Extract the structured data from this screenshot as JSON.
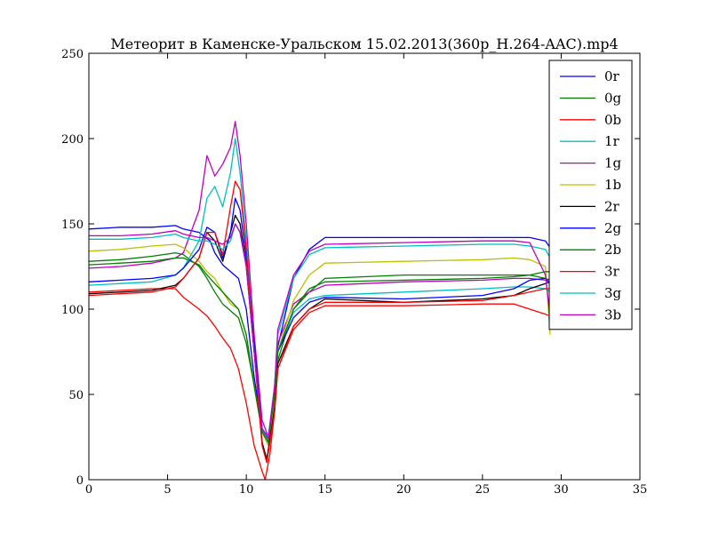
{
  "chart_data": {
    "type": "line",
    "title": "Метеорит в Каменске-Уральском 15.02.2013(360p_H.264-AAC).mp4",
    "xlabel": "",
    "ylabel": "",
    "xlim": [
      0,
      35
    ],
    "ylim": [
      0,
      250
    ],
    "xticks": [
      "0",
      "5",
      "10",
      "15",
      "20",
      "25",
      "30",
      "35"
    ],
    "yticks": [
      "0",
      "50",
      "100",
      "150",
      "200",
      "250"
    ],
    "legend_position": "top-right",
    "grid": false,
    "series": [
      {
        "name": "0r",
        "color": "#0000ff",
        "points": [
          [
            0,
            147
          ],
          [
            2,
            148
          ],
          [
            4,
            148
          ],
          [
            5.5,
            149
          ],
          [
            6,
            147
          ],
          [
            7,
            145
          ],
          [
            7.7,
            140
          ],
          [
            8,
            133
          ],
          [
            8.5,
            126
          ],
          [
            9,
            122
          ],
          [
            9.5,
            118
          ],
          [
            10,
            100
          ],
          [
            10.5,
            60
          ],
          [
            11,
            30
          ],
          [
            11.4,
            22
          ],
          [
            11.8,
            50
          ],
          [
            12,
            78
          ],
          [
            13,
            118
          ],
          [
            14,
            135
          ],
          [
            15,
            142
          ],
          [
            20,
            142
          ],
          [
            25,
            142
          ],
          [
            28,
            142
          ],
          [
            29,
            140
          ],
          [
            29.3,
            136
          ]
        ]
      },
      {
        "name": "0g",
        "color": "#008000",
        "points": [
          [
            0,
            128
          ],
          [
            2,
            129
          ],
          [
            4,
            131
          ],
          [
            5.5,
            133
          ],
          [
            6,
            132
          ],
          [
            7,
            125
          ],
          [
            7.5,
            118
          ],
          [
            8,
            110
          ],
          [
            8.5,
            103
          ],
          [
            9,
            99
          ],
          [
            9.5,
            95
          ],
          [
            10,
            80
          ],
          [
            10.5,
            55
          ],
          [
            11,
            28
          ],
          [
            11.4,
            20
          ],
          [
            11.8,
            45
          ],
          [
            12,
            70
          ],
          [
            13,
            100
          ],
          [
            14,
            110
          ],
          [
            15,
            118
          ],
          [
            20,
            120
          ],
          [
            25,
            120
          ],
          [
            28,
            120
          ],
          [
            29,
            118
          ],
          [
            29.3,
            117
          ]
        ]
      },
      {
        "name": "0b",
        "color": "#ff0000",
        "points": [
          [
            0,
            110
          ],
          [
            2,
            111
          ],
          [
            4,
            112
          ],
          [
            5.5,
            112
          ],
          [
            6,
            107
          ],
          [
            7,
            100
          ],
          [
            7.5,
            96
          ],
          [
            8,
            90
          ],
          [
            8.5,
            83
          ],
          [
            9,
            77
          ],
          [
            9.5,
            65
          ],
          [
            10,
            45
          ],
          [
            10.5,
            20
          ],
          [
            11,
            5
          ],
          [
            11.2,
            0
          ],
          [
            11.5,
            15
          ],
          [
            11.8,
            40
          ],
          [
            12,
            65
          ],
          [
            13,
            88
          ],
          [
            14,
            98
          ],
          [
            15,
            102
          ],
          [
            20,
            102
          ],
          [
            25,
            103
          ],
          [
            27,
            103
          ],
          [
            28,
            100
          ],
          [
            29,
            97
          ],
          [
            29.3,
            96
          ]
        ]
      },
      {
        "name": "1r",
        "color": "#00bfbf",
        "points": [
          [
            0,
            114
          ],
          [
            2,
            115
          ],
          [
            4,
            116
          ],
          [
            5.5,
            120
          ],
          [
            6,
            124
          ],
          [
            7,
            140
          ],
          [
            7.5,
            165
          ],
          [
            8,
            172
          ],
          [
            8.5,
            160
          ],
          [
            9,
            180
          ],
          [
            9.3,
            200
          ],
          [
            9.6,
            180
          ],
          [
            10,
            140
          ],
          [
            10.5,
            80
          ],
          [
            11,
            30
          ],
          [
            11.4,
            22
          ],
          [
            11.8,
            50
          ],
          [
            12,
            75
          ],
          [
            13,
            98
          ],
          [
            14,
            106
          ],
          [
            15,
            108
          ],
          [
            20,
            110
          ],
          [
            25,
            112
          ],
          [
            27,
            113
          ],
          [
            28,
            113
          ],
          [
            29,
            112
          ],
          [
            29.3,
            110
          ]
        ]
      },
      {
        "name": "1g",
        "color": "#bf00bf",
        "points": [
          [
            0,
            124
          ],
          [
            2,
            125
          ],
          [
            4,
            127
          ],
          [
            5.5,
            130
          ],
          [
            6,
            133
          ],
          [
            7,
            158
          ],
          [
            7.5,
            190
          ],
          [
            8,
            178
          ],
          [
            8.5,
            185
          ],
          [
            9,
            195
          ],
          [
            9.3,
            210
          ],
          [
            9.6,
            190
          ],
          [
            10,
            150
          ],
          [
            10.5,
            85
          ],
          [
            11,
            35
          ],
          [
            11.4,
            25
          ],
          [
            11.8,
            55
          ],
          [
            12,
            80
          ],
          [
            13,
            103
          ],
          [
            14,
            110
          ],
          [
            15,
            114
          ],
          [
            20,
            116
          ],
          [
            25,
            117
          ],
          [
            27,
            118
          ],
          [
            28,
            118
          ],
          [
            29,
            117
          ],
          [
            29.3,
            116
          ]
        ]
      },
      {
        "name": "1b",
        "color": "#bfbf00",
        "points": [
          [
            0,
            134
          ],
          [
            2,
            135
          ],
          [
            4,
            137
          ],
          [
            5.5,
            138
          ],
          [
            6,
            136
          ],
          [
            7,
            128
          ],
          [
            7.5,
            122
          ],
          [
            8,
            118
          ],
          [
            8.5,
            110
          ],
          [
            9,
            103
          ],
          [
            9.5,
            100
          ],
          [
            10,
            85
          ],
          [
            10.5,
            55
          ],
          [
            11,
            28
          ],
          [
            11.4,
            20
          ],
          [
            11.8,
            48
          ],
          [
            12,
            75
          ],
          [
            13,
            105
          ],
          [
            14,
            120
          ],
          [
            15,
            127
          ],
          [
            20,
            128
          ],
          [
            25,
            129
          ],
          [
            27,
            130
          ],
          [
            28,
            129
          ],
          [
            29,
            125
          ],
          [
            29.3,
            85
          ]
        ]
      },
      {
        "name": "2r",
        "color": "#000000",
        "points": [
          [
            0,
            109
          ],
          [
            2,
            110
          ],
          [
            4,
            111
          ],
          [
            5.5,
            114
          ],
          [
            6,
            118
          ],
          [
            7,
            130
          ],
          [
            7.5,
            145
          ],
          [
            8,
            140
          ],
          [
            8.5,
            128
          ],
          [
            9,
            145
          ],
          [
            9.3,
            155
          ],
          [
            9.6,
            150
          ],
          [
            10,
            125
          ],
          [
            10.5,
            75
          ],
          [
            11,
            22
          ],
          [
            11.3,
            12
          ],
          [
            11.8,
            42
          ],
          [
            12,
            68
          ],
          [
            13,
            90
          ],
          [
            14,
            100
          ],
          [
            15,
            106
          ],
          [
            20,
            104
          ],
          [
            25,
            106
          ],
          [
            27,
            108
          ],
          [
            28,
            112
          ],
          [
            29,
            115
          ],
          [
            29.3,
            116
          ]
        ]
      },
      {
        "name": "2g",
        "color": "#0000ff",
        "points": [
          [
            0,
            116
          ],
          [
            2,
            117
          ],
          [
            4,
            118
          ],
          [
            5.5,
            120
          ],
          [
            6,
            124
          ],
          [
            7,
            135
          ],
          [
            7.5,
            148
          ],
          [
            8,
            145
          ],
          [
            8.5,
            130
          ],
          [
            9,
            145
          ],
          [
            9.3,
            165
          ],
          [
            9.6,
            158
          ],
          [
            10,
            130
          ],
          [
            10.5,
            80
          ],
          [
            11,
            30
          ],
          [
            11.4,
            25
          ],
          [
            11.8,
            52
          ],
          [
            12,
            75
          ],
          [
            13,
            95
          ],
          [
            14,
            104
          ],
          [
            15,
            107
          ],
          [
            20,
            106
          ],
          [
            25,
            108
          ],
          [
            27,
            112
          ],
          [
            28,
            117
          ],
          [
            29,
            118
          ],
          [
            29.3,
            115
          ]
        ]
      },
      {
        "name": "2b",
        "color": "#008000",
        "points": [
          [
            0,
            126
          ],
          [
            2,
            127
          ],
          [
            4,
            128
          ],
          [
            5.5,
            130
          ],
          [
            6,
            130
          ],
          [
            7,
            126
          ],
          [
            7.5,
            120
          ],
          [
            8,
            115
          ],
          [
            8.5,
            110
          ],
          [
            9,
            105
          ],
          [
            9.5,
            100
          ],
          [
            10,
            85
          ],
          [
            10.5,
            55
          ],
          [
            11,
            28
          ],
          [
            11.4,
            22
          ],
          [
            11.8,
            50
          ],
          [
            12,
            75
          ],
          [
            13,
            100
          ],
          [
            14,
            112
          ],
          [
            15,
            116
          ],
          [
            20,
            117
          ],
          [
            25,
            118
          ],
          [
            27,
            119
          ],
          [
            28,
            120
          ],
          [
            29,
            122
          ],
          [
            29.3,
            122
          ]
        ]
      },
      {
        "name": "3r",
        "color": "#ff0000",
        "points": [
          [
            0,
            108
          ],
          [
            2,
            109
          ],
          [
            4,
            110
          ],
          [
            5.5,
            113
          ],
          [
            6,
            118
          ],
          [
            7,
            130
          ],
          [
            7.5,
            145
          ],
          [
            8,
            145
          ],
          [
            8.5,
            132
          ],
          [
            9,
            160
          ],
          [
            9.3,
            175
          ],
          [
            9.6,
            170
          ],
          [
            10,
            135
          ],
          [
            10.5,
            75
          ],
          [
            11,
            20
          ],
          [
            11.3,
            10
          ],
          [
            11.8,
            40
          ],
          [
            12,
            65
          ],
          [
            13,
            90
          ],
          [
            14,
            100
          ],
          [
            15,
            104
          ],
          [
            20,
            104
          ],
          [
            25,
            105
          ],
          [
            27,
            108
          ],
          [
            28,
            110
          ],
          [
            29,
            112
          ],
          [
            29.3,
            112
          ]
        ]
      },
      {
        "name": "3g",
        "color": "#00bfbf",
        "points": [
          [
            0,
            141
          ],
          [
            2,
            141
          ],
          [
            4,
            142
          ],
          [
            5.5,
            144
          ],
          [
            6,
            142
          ],
          [
            7,
            140
          ],
          [
            7.5,
            140
          ],
          [
            8,
            138
          ],
          [
            8.5,
            135
          ],
          [
            9,
            140
          ],
          [
            9.3,
            150
          ],
          [
            9.6,
            145
          ],
          [
            10,
            125
          ],
          [
            10.5,
            75
          ],
          [
            11,
            30
          ],
          [
            11.4,
            25
          ],
          [
            11.8,
            55
          ],
          [
            12,
            85
          ],
          [
            13,
            118
          ],
          [
            14,
            132
          ],
          [
            15,
            136
          ],
          [
            20,
            137
          ],
          [
            25,
            138
          ],
          [
            27,
            138
          ],
          [
            28,
            137
          ],
          [
            29,
            135
          ],
          [
            29.3,
            130
          ]
        ]
      },
      {
        "name": "3b",
        "color": "#bf00bf",
        "points": [
          [
            0,
            143
          ],
          [
            2,
            143
          ],
          [
            4,
            144
          ],
          [
            5.5,
            146
          ],
          [
            6,
            144
          ],
          [
            7,
            142
          ],
          [
            7.5,
            142
          ],
          [
            8,
            140
          ],
          [
            8.5,
            138
          ],
          [
            9,
            142
          ],
          [
            9.3,
            150
          ],
          [
            9.6,
            145
          ],
          [
            10,
            125
          ],
          [
            10.5,
            75
          ],
          [
            11,
            30
          ],
          [
            11.4,
            24
          ],
          [
            11.8,
            55
          ],
          [
            12,
            88
          ],
          [
            13,
            120
          ],
          [
            14,
            134
          ],
          [
            15,
            138
          ],
          [
            20,
            139
          ],
          [
            25,
            140
          ],
          [
            27,
            140
          ],
          [
            28,
            139
          ],
          [
            29,
            120
          ],
          [
            29.3,
            95
          ]
        ]
      }
    ]
  }
}
